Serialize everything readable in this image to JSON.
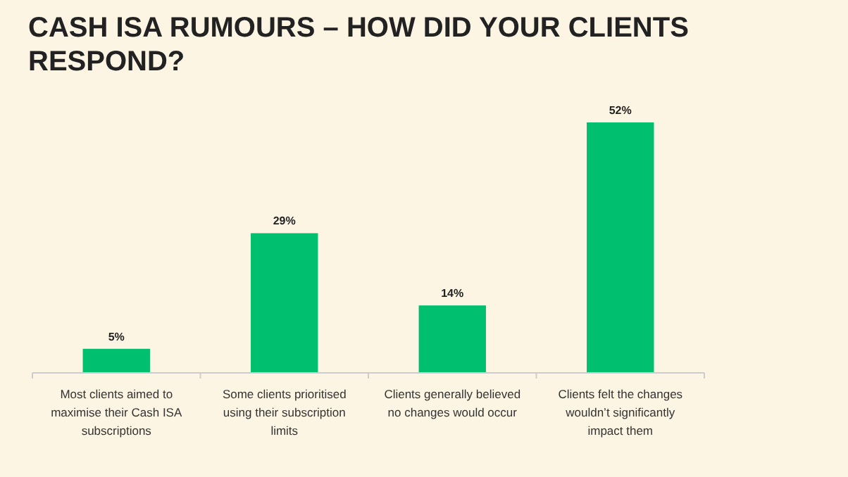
{
  "chart_data": {
    "type": "bar",
    "title": "CASH ISA RUMOURS – HOW DID YOUR CLIENTS RESPOND?",
    "categories": [
      "Most clients aimed to maximise their Cash ISA subscriptions",
      "Some clients prioritised using their subscription limits",
      "Clients generally believed no changes would occur",
      "Clients felt the changes wouldn’t significantly impact them"
    ],
    "values": [
      5,
      29,
      14,
      52
    ],
    "value_labels": [
      "5%",
      "29%",
      "14%",
      "52%"
    ],
    "color": "#00bf6f"
  }
}
